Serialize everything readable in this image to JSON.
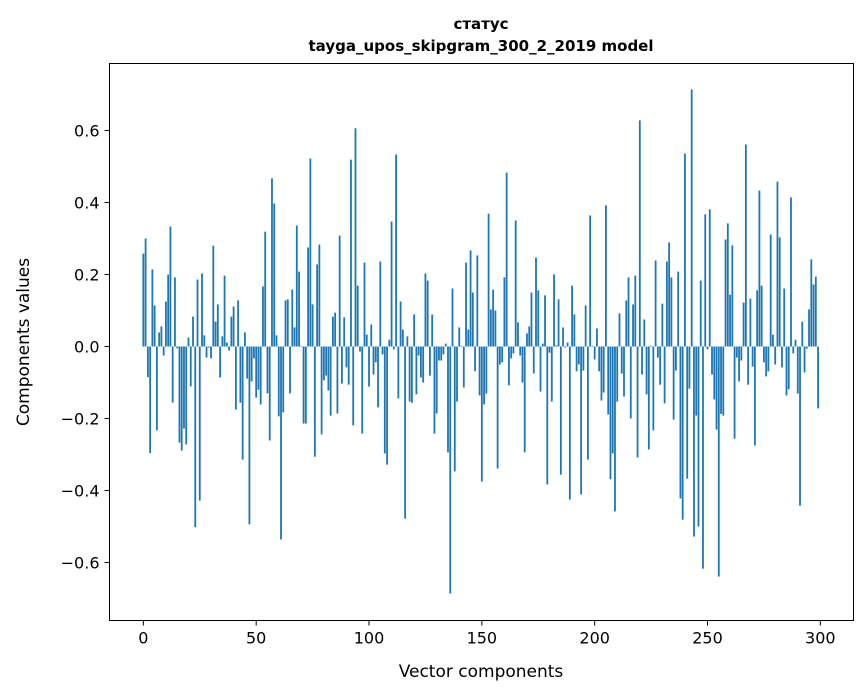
{
  "chart_data": {
    "type": "bar",
    "title": [
      "статус",
      "tayga_upos_skipgram_300_2_2019 model"
    ],
    "xlabel": "Vector components",
    "ylabel": "Components values",
    "xlim": [
      -15,
      314.7
    ],
    "ylim": [
      -0.761,
      0.786
    ],
    "xticks": [
      0,
      50,
      100,
      150,
      200,
      250,
      300
    ],
    "xtick_labels": [
      "0",
      "50",
      "100",
      "150",
      "200",
      "250",
      "300"
    ],
    "yticks": [
      -0.6,
      -0.4,
      -0.2,
      0.0,
      0.2,
      0.4,
      0.6
    ],
    "ytick_labels": [
      "−0.6",
      "−0.4",
      "−0.2",
      "0.0",
      "0.2",
      "0.4",
      "0.6"
    ],
    "grid": false,
    "bar_color": "#1f77b4",
    "values": [
      0.258,
      0.3,
      -0.085,
      -0.296,
      0.214,
      0.114,
      -0.233,
      0.039,
      0.056,
      -0.025,
      0.125,
      0.2,
      0.333,
      -0.156,
      0.192,
      -0.005,
      -0.267,
      -0.289,
      -0.228,
      -0.272,
      0.025,
      -0.111,
      0.083,
      -0.502,
      0.186,
      -0.428,
      0.203,
      0.031,
      -0.031,
      -0.003,
      -0.033,
      0.28,
      0.069,
      0.117,
      -0.086,
      0.028,
      0.197,
      0.011,
      -0.011,
      0.083,
      0.111,
      -0.175,
      0.128,
      -0.156,
      -0.314,
      0.039,
      -0.089,
      -0.494,
      -0.097,
      -0.033,
      -0.142,
      -0.12,
      -0.161,
      0.167,
      0.319,
      -0.13,
      -0.261,
      0.467,
      0.397,
      0.031,
      -0.194,
      -0.536,
      -0.183,
      0.128,
      0.131,
      -0.13,
      0.158,
      0.053,
      0.336,
      0.208,
      0.002,
      -0.214,
      -0.214,
      0.275,
      0.522,
      0.117,
      -0.306,
      0.228,
      0.283,
      -0.244,
      -0.094,
      -0.081,
      -0.122,
      -0.192,
      0.083,
      0.094,
      -0.186,
      0.308,
      -0.103,
      0.081,
      -0.058,
      -0.106,
      0.519,
      -0.219,
      0.606,
      0.169,
      -0.014,
      -0.242,
      0.233,
      0.033,
      -0.111,
      0.061,
      -0.078,
      -0.044,
      -0.169,
      0.236,
      -0.022,
      -0.297,
      -0.328,
      0.019,
      0.347,
      -0.008,
      0.533,
      -0.144,
      0.125,
      0.047,
      -0.478,
      0.028,
      -0.153,
      -0.156,
      0.089,
      -0.133,
      -0.025,
      -0.086,
      -0.1,
      0.203,
      0.183,
      -0.081,
      0.089,
      -0.242,
      -0.186,
      -0.039,
      -0.039,
      -0.022,
      0.008,
      -0.294,
      -0.686,
      0.161,
      -0.347,
      -0.153,
      0.053,
      0.002,
      -0.114,
      0.233,
      0.047,
      0.267,
      0.15,
      -0.069,
      0.253,
      -0.136,
      -0.375,
      -0.161,
      -0.131,
      0.369,
      0.103,
      0.158,
      0.1,
      -0.339,
      -0.05,
      -0.044,
      0.192,
      0.483,
      -0.108,
      -0.033,
      -0.019,
      0.35,
      0.067,
      -0.025,
      -0.1,
      -0.294,
      0.036,
      0.056,
      0.15,
      -0.075,
      0.247,
      0.156,
      -0.125,
      0.008,
      0.142,
      -0.383,
      -0.017,
      -0.153,
      0.2,
      0.003,
      0.131,
      -0.356,
      0.053,
      -0.003,
      0.011,
      -0.425,
      0.169,
      0.089,
      -0.069,
      -0.05,
      -0.411,
      -0.067,
      0.114,
      -0.314,
      0.364,
      0.002,
      -0.036,
      0.05,
      -0.069,
      -0.15,
      -0.128,
      0.392,
      -0.189,
      -0.369,
      -0.297,
      -0.458,
      -0.153,
      0.092,
      -0.075,
      -0.139,
      0.128,
      0.192,
      -0.2,
      0.117,
      0.197,
      -0.308,
      0.628,
      -0.078,
      0.075,
      -0.133,
      -0.286,
      0.002,
      -0.233,
      0.239,
      -0.031,
      -0.106,
      0.119,
      -0.158,
      0.236,
      0.289,
      0.192,
      -0.203,
      -0.067,
      0.208,
      -0.422,
      -0.481,
      0.536,
      -0.367,
      -0.117,
      0.714,
      -0.528,
      -0.192,
      -0.5,
      0.183,
      -0.617,
      0.367,
      -0.008,
      0.381,
      -0.078,
      -0.147,
      -0.231,
      -0.639,
      -0.187,
      -0.192,
      0.297,
      0.342,
      0.144,
      0.281,
      -0.256,
      -0.031,
      -0.097,
      -0.039,
      0.122,
      0.561,
      -0.106,
      0.133,
      -0.056,
      -0.275,
      0.156,
      0.433,
      0.169,
      -0.044,
      -0.083,
      -0.069,
      0.311,
      0.033,
      -0.05,
      0.458,
      0.303,
      -0.058,
      0.161,
      -0.136,
      -0.119,
      0.414,
      -0.019,
      0.019,
      -0.131,
      -0.442,
      0.069,
      -0.072,
      -0.006,
      0.103,
      0.242,
      0.172,
      0.194,
      -0.172
    ]
  }
}
